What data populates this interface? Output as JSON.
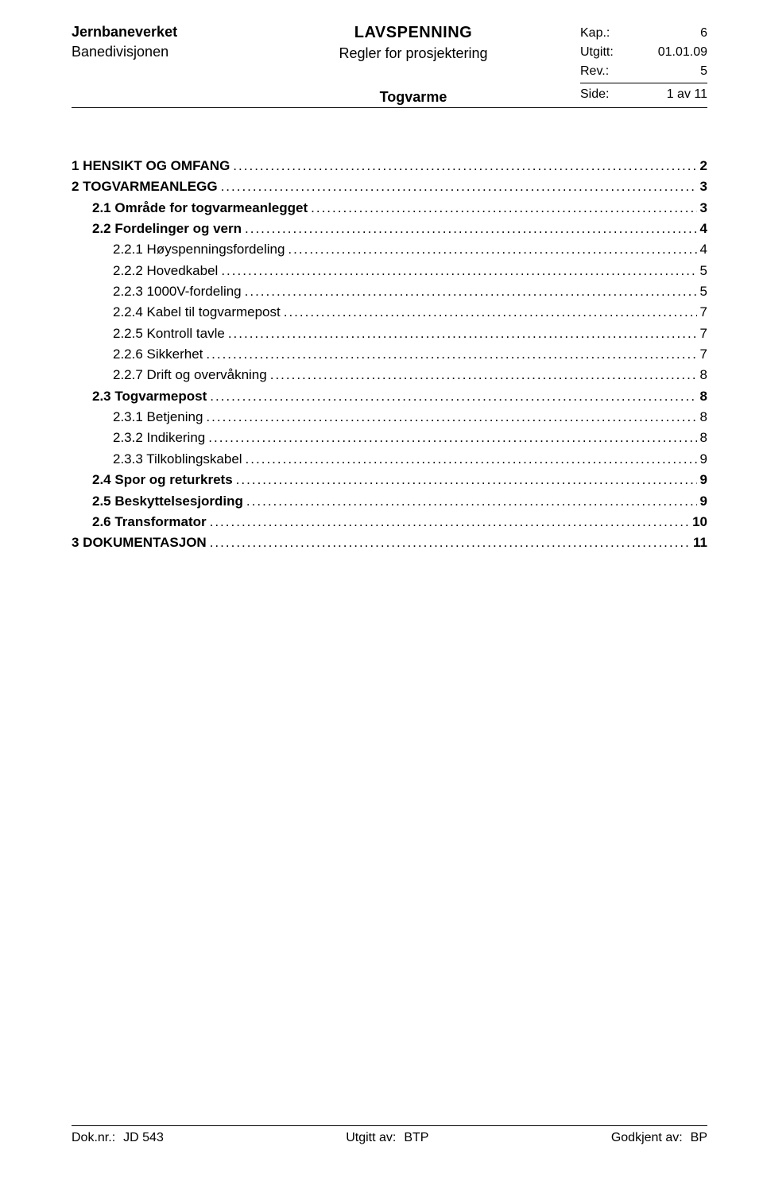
{
  "header": {
    "org": "Jernbaneverket",
    "division": "Banedivisjonen",
    "title_main": "LAVSPENNING",
    "title_sub": "Regler for prosjektering",
    "title_sub2": "Togvarme",
    "meta": {
      "kap_label": "Kap.:",
      "kap_val": "6",
      "utgitt_label": "Utgitt:",
      "utgitt_val": "01.01.09",
      "rev_label": "Rev.:",
      "rev_val": "5",
      "side_label": "Side:",
      "side_val": "1 av 11"
    }
  },
  "toc": {
    "items": [
      {
        "level": 1,
        "bold": true,
        "label": "1   HENSIKT OG OMFANG",
        "page": "2"
      },
      {
        "level": 1,
        "bold": true,
        "label": "2   TOGVARMEANLEGG",
        "page": "3"
      },
      {
        "level": 2,
        "bold": true,
        "label": "2.1   Område for togvarmeanlegget",
        "page": "3"
      },
      {
        "level": 2,
        "bold": true,
        "label": "2.2   Fordelinger og vern",
        "page": "4"
      },
      {
        "level": 3,
        "bold": false,
        "label": "2.2.1   Høyspenningsfordeling",
        "page": "4"
      },
      {
        "level": 3,
        "bold": false,
        "label": "2.2.2   Hovedkabel",
        "page": "5"
      },
      {
        "level": 3,
        "bold": false,
        "label": "2.2.3   1000V-fordeling",
        "page": "5"
      },
      {
        "level": 3,
        "bold": false,
        "label": "2.2.4   Kabel til togvarmepost",
        "page": "7"
      },
      {
        "level": 3,
        "bold": false,
        "label": "2.2.5   Kontroll tavle",
        "page": "7"
      },
      {
        "level": 3,
        "bold": false,
        "label": "2.2.6   Sikkerhet",
        "page": "7"
      },
      {
        "level": 3,
        "bold": false,
        "label": "2.2.7   Drift og overvåkning",
        "page": "8"
      },
      {
        "level": 2,
        "bold": true,
        "label": "2.3   Togvarmepost",
        "page": "8"
      },
      {
        "level": 3,
        "bold": false,
        "label": "2.3.1   Betjening",
        "page": "8"
      },
      {
        "level": 3,
        "bold": false,
        "label": "2.3.2   Indikering",
        "page": "8"
      },
      {
        "level": 3,
        "bold": false,
        "label": "2.3.3   Tilkoblingskabel",
        "page": "9"
      },
      {
        "level": 2,
        "bold": true,
        "label": "2.4   Spor og returkrets",
        "page": "9"
      },
      {
        "level": 2,
        "bold": true,
        "label": "2.5   Beskyttelsesjording",
        "page": "9"
      },
      {
        "level": 2,
        "bold": true,
        "label": "2.6   Transformator",
        "page": "10"
      },
      {
        "level": 1,
        "bold": true,
        "label": "3   DOKUMENTASJON",
        "page": "11"
      }
    ]
  },
  "footer": {
    "doknr_label": "Dok.nr.:",
    "doknr_val": "JD 543",
    "utgitt_label": "Utgitt av:",
    "utgitt_val": "BTP",
    "godkjent_label": "Godkjent av:",
    "godkjent_val": "BP"
  }
}
